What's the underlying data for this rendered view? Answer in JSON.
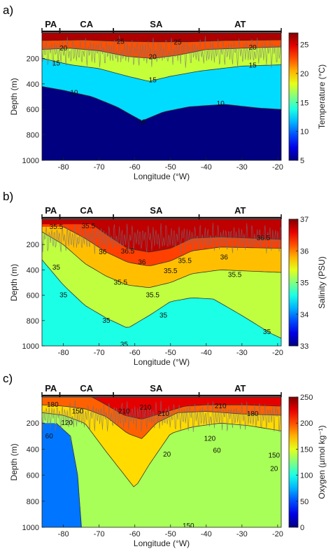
{
  "chart_data": [
    {
      "type": "heatmap",
      "panel_label": "a)",
      "regions": [
        "PA",
        "CA",
        "SA",
        "AT"
      ],
      "xlabel": "Longitude (°W)",
      "ylabel": "Depth (m)",
      "colorbar_label": "Temperature (°C)",
      "xlim": [
        -86,
        -19
      ],
      "ylim": [
        1000,
        0
      ],
      "xticks": [
        "-80",
        "-70",
        "-60",
        "-50",
        "-40",
        "-30",
        "-20"
      ],
      "yticks": [
        "200",
        "400",
        "600",
        "800",
        "1000"
      ],
      "cticks": [
        "5",
        "10",
        "15",
        "20",
        "25"
      ],
      "crange": [
        5,
        27
      ],
      "contours": [
        {
          "label": "25",
          "depths_m": [
            [
              -86,
              60
            ],
            [
              -75,
              55
            ],
            [
              -65,
              65
            ],
            [
              -55,
              70
            ],
            [
              -45,
              70
            ],
            [
              -35,
              60
            ],
            [
              -19,
              55
            ]
          ]
        },
        {
          "label": "20",
          "depths_m": [
            [
              -86,
              130
            ],
            [
              -78,
              120
            ],
            [
              -70,
              140
            ],
            [
              -62,
              185
            ],
            [
              -55,
              200
            ],
            [
              -48,
              175
            ],
            [
              -40,
              130
            ],
            [
              -30,
              120
            ],
            [
              -19,
              110
            ]
          ]
        },
        {
          "label": "15",
          "depths_m": [
            [
              -86,
              200
            ],
            [
              -78,
              250
            ],
            [
              -70,
              280
            ],
            [
              -62,
              340
            ],
            [
              -56,
              380
            ],
            [
              -50,
              340
            ],
            [
              -42,
              300
            ],
            [
              -30,
              260
            ],
            [
              -19,
              250
            ]
          ]
        },
        {
          "label": "10",
          "depths_m": [
            [
              -86,
              420
            ],
            [
              -80,
              450
            ],
            [
              -72,
              500
            ],
            [
              -65,
              580
            ],
            [
              -58,
              690
            ],
            [
              -52,
              620
            ],
            [
              -45,
              580
            ],
            [
              -35,
              560
            ],
            [
              -25,
              590
            ],
            [
              -19,
              600
            ]
          ]
        }
      ],
      "contour_labels": [
        {
          "text": "25",
          "lon": -64,
          "depth": 70
        },
        {
          "text": "25",
          "lon": -48,
          "depth": 75
        },
        {
          "text": "20",
          "lon": -80,
          "depth": 120
        },
        {
          "text": "20",
          "lon": -55,
          "depth": 190
        },
        {
          "text": "20",
          "lon": -27,
          "depth": 115
        },
        {
          "text": "15",
          "lon": -82,
          "depth": 240
        },
        {
          "text": "15",
          "lon": -55,
          "depth": 370
        },
        {
          "text": "15",
          "lon": -27,
          "depth": 255
        },
        {
          "text": "10",
          "lon": -77,
          "depth": 470
        },
        {
          "text": "10",
          "lon": -58,
          "depth": 700
        },
        {
          "text": "10",
          "lon": -36,
          "depth": 555
        }
      ]
    },
    {
      "type": "heatmap",
      "panel_label": "b)",
      "regions": [
        "PA",
        "CA",
        "SA",
        "AT"
      ],
      "xlabel": "Longitude (°W)",
      "ylabel": "Depth (m)",
      "colorbar_label": "Salinity (PSU)",
      "xlim": [
        -86,
        -19
      ],
      "ylim": [
        1000,
        0
      ],
      "xticks": [
        "-80",
        "-70",
        "-60",
        "-50",
        "-40",
        "-30",
        "-20"
      ],
      "yticks": [
        "200",
        "400",
        "600",
        "800",
        "1000"
      ],
      "cticks": [
        "33",
        "34",
        "35",
        "36",
        "37"
      ],
      "crange": [
        33,
        37
      ],
      "contours": [
        {
          "label": "36.5",
          "depths_m": [
            [
              -72,
              40
            ],
            [
              -68,
              120
            ],
            [
              -62,
              230
            ],
            [
              -56,
              260
            ],
            [
              -50,
              230
            ],
            [
              -44,
              150
            ],
            [
              -36,
              140
            ],
            [
              -19,
              160
            ]
          ]
        },
        {
          "label": "36",
          "depths_m": [
            [
              -80,
              60
            ],
            [
              -74,
              150
            ],
            [
              -68,
              260
            ],
            [
              -62,
              340
            ],
            [
              -56,
              370
            ],
            [
              -50,
              330
            ],
            [
              -44,
              250
            ],
            [
              -36,
              220
            ],
            [
              -19,
              230
            ]
          ]
        },
        {
          "label": "35.5",
          "depths_m": [
            [
              -86,
              100
            ],
            [
              -80,
              200
            ],
            [
              -74,
              350
            ],
            [
              -68,
              450
            ],
            [
              -62,
              520
            ],
            [
              -56,
              540
            ],
            [
              -50,
              500
            ],
            [
              -44,
              430
            ],
            [
              -36,
              400
            ],
            [
              -19,
              420
            ]
          ]
        },
        {
          "label": "35",
          "depths_m": [
            [
              -86,
              320
            ],
            [
              -80,
              520
            ],
            [
              -74,
              680
            ],
            [
              -68,
              780
            ],
            [
              -62,
              860
            ],
            [
              -56,
              760
            ],
            [
              -50,
              650
            ],
            [
              -44,
              620
            ],
            [
              -38,
              630
            ],
            [
              -30,
              760
            ],
            [
              -22,
              900
            ],
            [
              -19,
              940
            ]
          ]
        }
      ],
      "contour_labels": [
        {
          "text": "35.5",
          "lon": -82,
          "depth": 60
        },
        {
          "text": "35.5",
          "lon": -73,
          "depth": 55
        },
        {
          "text": "36",
          "lon": -69,
          "depth": 260
        },
        {
          "text": "36.5",
          "lon": -62,
          "depth": 255
        },
        {
          "text": "36",
          "lon": -58,
          "depth": 340
        },
        {
          "text": "35.5",
          "lon": -64,
          "depth": 500
        },
        {
          "text": "35.5",
          "lon": -50,
          "depth": 410
        },
        {
          "text": "35.5",
          "lon": -46,
          "depth": 330
        },
        {
          "text": "36",
          "lon": -35,
          "depth": 300
        },
        {
          "text": "35.5",
          "lon": -32,
          "depth": 440
        },
        {
          "text": "36.5",
          "lon": -24,
          "depth": 150
        },
        {
          "text": "35",
          "lon": -82,
          "depth": 380
        },
        {
          "text": "35",
          "lon": -80,
          "depth": 600
        },
        {
          "text": "35",
          "lon": -68,
          "depth": 800
        },
        {
          "text": "35.5",
          "lon": -55,
          "depth": 600
        },
        {
          "text": "35",
          "lon": -52,
          "depth": 760
        },
        {
          "text": "35",
          "lon": -63,
          "depth": 990
        },
        {
          "text": "35",
          "lon": -23,
          "depth": 890
        }
      ]
    },
    {
      "type": "heatmap",
      "panel_label": "c)",
      "regions": [
        "PA",
        "CA",
        "SA",
        "AT"
      ],
      "xlabel": "Longitude (°W)",
      "ylabel": "Depth (m)",
      "colorbar_label": "Oxygen (µmol kg⁻¹)",
      "xlim": [
        -86,
        -19
      ],
      "ylim": [
        1000,
        0
      ],
      "xticks": [
        "-80",
        "-70",
        "-60",
        "-50",
        "-40",
        "-30",
        "-20"
      ],
      "yticks": [
        "200",
        "400",
        "600",
        "800",
        "1000"
      ],
      "cticks": [
        "0",
        "50",
        "100",
        "150",
        "200",
        "250"
      ],
      "crange": [
        0,
        250
      ],
      "contours": [
        {
          "label": "210",
          "depths_m": [
            [
              -72,
              0
            ],
            [
              -68,
              60
            ],
            [
              -63,
              140
            ],
            [
              -58,
              170
            ],
            [
              -52,
              120
            ],
            [
              -46,
              70
            ],
            [
              -40,
              60
            ],
            [
              -30,
              60
            ],
            [
              -19,
              70
            ]
          ]
        },
        {
          "label": "180",
          "depths_m": [
            [
              -86,
              60
            ],
            [
              -80,
              70
            ],
            [
              -74,
              90
            ],
            [
              -68,
              150
            ],
            [
              -62,
              280
            ],
            [
              -58,
              320
            ],
            [
              -54,
              200
            ],
            [
              -48,
              120
            ],
            [
              -40,
              110
            ],
            [
              -30,
              130
            ],
            [
              -19,
              140
            ]
          ]
        },
        {
          "label": "150",
          "depths_m": [
            [
              -86,
              120
            ],
            [
              -80,
              140
            ],
            [
              -74,
              200
            ],
            [
              -68,
              420
            ],
            [
              -64,
              560
            ],
            [
              -60,
              700
            ],
            [
              -56,
              520
            ],
            [
              -50,
              280
            ],
            [
              -44,
              230
            ],
            [
              -36,
              200
            ],
            [
              -28,
              220
            ],
            [
              -19,
              260
            ]
          ]
        },
        {
          "label": "120",
          "depths_m": [
            [
              -82,
              200
            ],
            [
              -78,
              300
            ],
            [
              -76,
              600
            ],
            [
              -75,
              1000
            ]
          ]
        }
      ],
      "contour_labels": [
        {
          "text": "180",
          "lon": -83,
          "depth": 60
        },
        {
          "text": "210",
          "lon": -63,
          "depth": 110
        },
        {
          "text": "210",
          "lon": -57,
          "depth": 80
        },
        {
          "text": "210",
          "lon": -52,
          "depth": 130
        },
        {
          "text": "210",
          "lon": -36,
          "depth": 70
        },
        {
          "text": "180",
          "lon": -27,
          "depth": 130
        },
        {
          "text": "150",
          "lon": -76,
          "depth": 110
        },
        {
          "text": "120",
          "lon": -79,
          "depth": 200
        },
        {
          "text": "60",
          "lon": -84,
          "depth": 300
        },
        {
          "text": "20",
          "lon": -51,
          "depth": 440
        },
        {
          "text": "120",
          "lon": -39,
          "depth": 320
        },
        {
          "text": "60",
          "lon": -37,
          "depth": 410
        },
        {
          "text": "150",
          "lon": -21,
          "depth": 450
        },
        {
          "text": "150",
          "lon": -45,
          "depth": 990
        },
        {
          "text": "20",
          "lon": -21,
          "depth": 550
        }
      ]
    }
  ]
}
